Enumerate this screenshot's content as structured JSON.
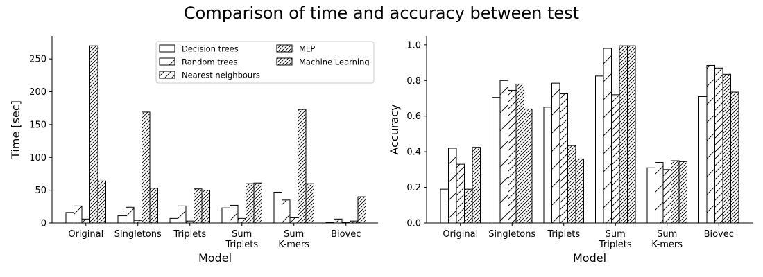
{
  "figure": {
    "title": "Comparison of time and accuracy between test"
  },
  "chart_data": [
    {
      "type": "bar",
      "xlabel": "Model",
      "ylabel": "Time [sec]",
      "ylim": [
        0,
        285
      ],
      "yticks": [
        0,
        50,
        100,
        150,
        200,
        250
      ],
      "categories": [
        "Original",
        "Singletons",
        "Triplets",
        "Sum\nTriplets",
        "Sum\nK-mers",
        "Biovec"
      ],
      "legend": {
        "placement": "top-right",
        "columns": 2
      },
      "series": [
        {
          "name": "Decision trees",
          "values": [
            16,
            11,
            7,
            23,
            47,
            1
          ],
          "hatch": "none"
        },
        {
          "name": "Random trees",
          "values": [
            26,
            24,
            26,
            27,
            35,
            6
          ],
          "hatch": "sparse"
        },
        {
          "name": "Nearest neighbours",
          "values": [
            6,
            4,
            3,
            7,
            8,
            1
          ],
          "hatch": "medium"
        },
        {
          "name": "MLP",
          "values": [
            270,
            169,
            52,
            60,
            173,
            3
          ],
          "hatch": "dense"
        },
        {
          "name": "Machine Learning",
          "values": [
            64,
            53,
            50,
            61,
            60,
            40
          ],
          "hatch": "dense"
        }
      ]
    },
    {
      "type": "bar",
      "xlabel": "Model",
      "ylabel": "Accuracy",
      "ylim": [
        0,
        1.05
      ],
      "yticks": [
        "0.0",
        "0.2",
        "0.4",
        "0.6",
        "0.8",
        "1.0"
      ],
      "categories": [
        "Original",
        "Singletons",
        "Triplets",
        "Sum\nTriplets",
        "Sum\nK-mers",
        "Biovec"
      ],
      "series": [
        {
          "name": "Decision trees",
          "values": [
            0.19,
            0.705,
            0.65,
            0.825,
            0.31,
            0.71
          ],
          "hatch": "none"
        },
        {
          "name": "Random trees",
          "values": [
            0.42,
            0.8,
            0.785,
            0.98,
            0.34,
            0.885
          ],
          "hatch": "sparse"
        },
        {
          "name": "Nearest neighbours",
          "values": [
            0.33,
            0.745,
            0.725,
            0.72,
            0.3,
            0.87
          ],
          "hatch": "medium"
        },
        {
          "name": "MLP",
          "values": [
            0.19,
            0.78,
            0.435,
            0.995,
            0.35,
            0.835
          ],
          "hatch": "dense"
        },
        {
          "name": "Machine Learning",
          "values": [
            0.425,
            0.64,
            0.36,
            0.995,
            0.345,
            0.735
          ],
          "hatch": "dense"
        }
      ]
    }
  ]
}
